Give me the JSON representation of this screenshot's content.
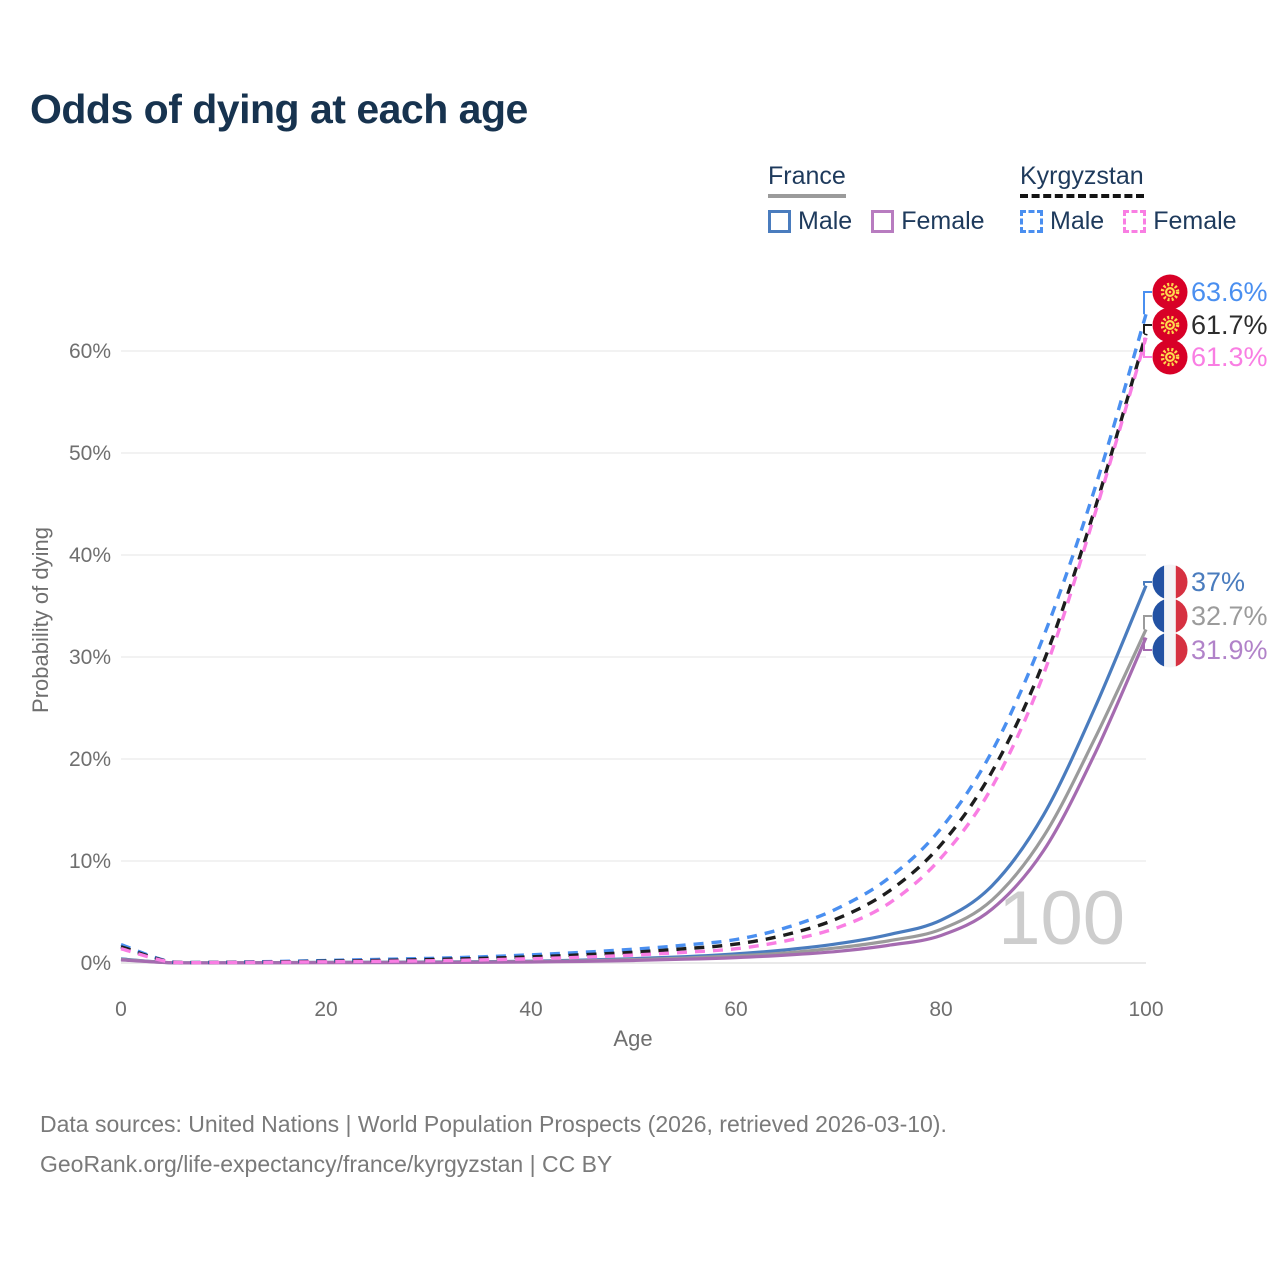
{
  "title": "Odds of dying at each age",
  "legend": {
    "groups": [
      {
        "name": "France",
        "line_style": "solid",
        "items": [
          {
            "label": "Male",
            "color": "#4a7cbe"
          },
          {
            "label": "Female",
            "color": "#b87cc0"
          }
        ]
      },
      {
        "name": "Kyrgyzstan",
        "line_style": "dashed",
        "items": [
          {
            "label": "Male",
            "color": "#4a8ff0"
          },
          {
            "label": "Female",
            "color": "#f97ee3"
          }
        ]
      }
    ]
  },
  "watermark": "100",
  "footer": {
    "line1": "Data sources: United Nations | World Population Prospects (2026, retrieved 2026-03-10).",
    "line2": "GeoRank.org/life-expectancy/france/kyrgyzstan | CC BY"
  },
  "flags": {
    "kyrgyzstan": {
      "red": "#d80027",
      "yellow": "#ffd94d"
    },
    "france": {
      "blue": "#2352a3",
      "white": "#f4f4f6",
      "red": "#d63141"
    }
  },
  "chart_data": {
    "type": "line",
    "title": "Odds of dying at each age",
    "xlabel": "Age",
    "ylabel": "Probability of dying",
    "xlim": [
      0,
      100
    ],
    "ylim_percent": [
      0,
      65
    ],
    "grid": "horizontal",
    "legend_position": "top-right",
    "x_ticks": [
      {
        "label": "0",
        "value": 0
      },
      {
        "label": "20",
        "value": 20
      },
      {
        "label": "40",
        "value": 40
      },
      {
        "label": "60",
        "value": 60
      },
      {
        "label": "80",
        "value": 80
      },
      {
        "label": "100",
        "value": 100
      }
    ],
    "y_ticks": [
      {
        "label": "0%",
        "value": 0
      },
      {
        "label": "10%",
        "value": 10
      },
      {
        "label": "20%",
        "value": 20
      },
      {
        "label": "30%",
        "value": 30
      },
      {
        "label": "40%",
        "value": 40
      },
      {
        "label": "50%",
        "value": 50
      },
      {
        "label": "60%",
        "value": 60
      }
    ],
    "ages": [
      0,
      5,
      10,
      15,
      20,
      25,
      30,
      35,
      40,
      45,
      50,
      55,
      60,
      65,
      70,
      75,
      80,
      85,
      90,
      95,
      100
    ],
    "series": [
      {
        "id": "france-male",
        "name": "France Male",
        "flag": "fr",
        "dash": false,
        "color": "#4a7cbe",
        "label_color": "#4a7cbe",
        "end_label": "37%",
        "end_value": 37.0,
        "values": [
          0.4,
          0.02,
          0.02,
          0.04,
          0.07,
          0.08,
          0.1,
          0.13,
          0.18,
          0.28,
          0.42,
          0.62,
          0.9,
          1.3,
          1.9,
          2.8,
          4.2,
          7.6,
          14.5,
          25.0,
          37.0
        ]
      },
      {
        "id": "france-both",
        "name": "France (both sexes)",
        "flag": "fr",
        "dash": false,
        "color": "#9b9b9b",
        "label_color": "#9b9b9b",
        "end_label": "32.7%",
        "end_value": 32.7,
        "values": [
          0.35,
          0.02,
          0.02,
          0.03,
          0.05,
          0.06,
          0.08,
          0.1,
          0.14,
          0.22,
          0.33,
          0.48,
          0.7,
          1.0,
          1.5,
          2.2,
          3.3,
          6.2,
          12.4,
          22.0,
          32.7
        ]
      },
      {
        "id": "france-female",
        "name": "France Female",
        "flag": "fr",
        "dash": false,
        "color": "#a56bb0",
        "label_color": "#b183c9",
        "end_label": "31.9%",
        "end_value": 31.9,
        "values": [
          0.3,
          0.02,
          0.01,
          0.02,
          0.03,
          0.04,
          0.05,
          0.07,
          0.1,
          0.16,
          0.25,
          0.37,
          0.53,
          0.78,
          1.15,
          1.75,
          2.7,
          5.3,
          11.0,
          20.5,
          31.9
        ]
      },
      {
        "id": "kyrgyzstan-male",
        "name": "Kyrgyzstan Male",
        "flag": "kg",
        "dash": true,
        "color": "#4a8ff0",
        "label_color": "#4a8ff0",
        "end_label": "63.6%",
        "end_value": 63.6,
        "values": [
          1.8,
          0.1,
          0.08,
          0.15,
          0.25,
          0.35,
          0.45,
          0.6,
          0.8,
          1.05,
          1.35,
          1.75,
          2.3,
          3.5,
          5.4,
          8.4,
          13.2,
          20.8,
          32.0,
          46.5,
          63.6
        ]
      },
      {
        "id": "kyrgyzstan-both",
        "name": "Kyrgyzstan (both sexes)",
        "flag": "kg",
        "dash": true,
        "color": "#1d1d1d",
        "label_color": "#2d2d2d",
        "end_label": "61.7%",
        "end_value": 61.7,
        "values": [
          1.6,
          0.08,
          0.06,
          0.11,
          0.18,
          0.25,
          0.33,
          0.45,
          0.6,
          0.8,
          1.05,
          1.4,
          1.85,
          2.8,
          4.4,
          7.1,
          11.6,
          18.8,
          29.5,
          44.5,
          61.7
        ]
      },
      {
        "id": "kyrgyzstan-female",
        "name": "Kyrgyzstan Female",
        "flag": "kg",
        "dash": true,
        "color": "#f97ee3",
        "label_color": "#f97ee3",
        "end_label": "61.3%",
        "end_value": 61.3,
        "values": [
          1.4,
          0.07,
          0.05,
          0.08,
          0.12,
          0.17,
          0.22,
          0.3,
          0.42,
          0.57,
          0.78,
          1.05,
          1.4,
          2.2,
          3.5,
          5.9,
          10.3,
          17.3,
          28.3,
          44.0,
          61.3
        ]
      }
    ]
  }
}
